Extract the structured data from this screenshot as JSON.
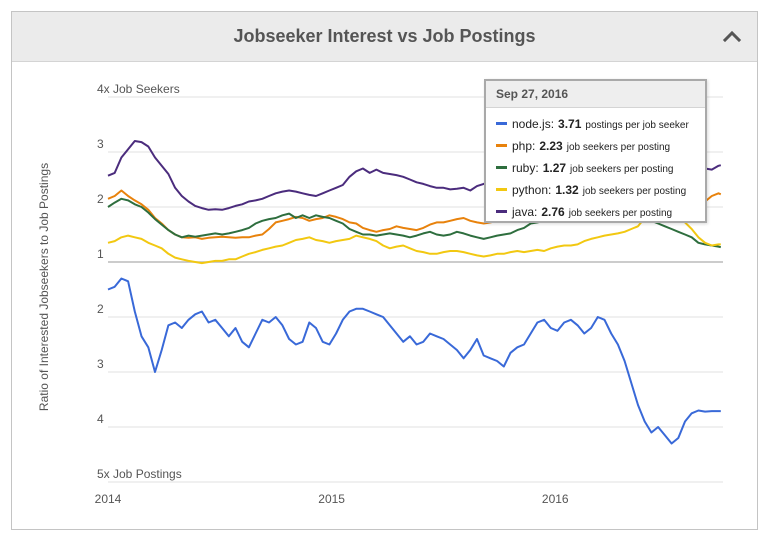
{
  "header": {
    "title": "Jobseeker Interest vs Job Postings"
  },
  "chart_data": {
    "type": "line",
    "title": "Jobseeker Interest vs Job Postings",
    "ylabel": "Ratio of Interested Jobseekers to Job Postings",
    "y_scale": "symmetric ratio: 1 is parity; values above the line favor job seekers, values below favor job postings",
    "y_ticks": [
      {
        "v": 4,
        "label": "4x Job Seekers"
      },
      {
        "v": 3,
        "label": "3"
      },
      {
        "v": 2,
        "label": "2"
      },
      {
        "v": 1,
        "label": "1"
      },
      {
        "v": -2,
        "label": "2"
      },
      {
        "v": -3,
        "label": "3"
      },
      {
        "v": -4,
        "label": "4"
      },
      {
        "v": -5,
        "label": "5x Job Postings"
      }
    ],
    "ylim": [
      -5,
      4
    ],
    "x_ticks": [
      {
        "v": 2014.0,
        "label": "2014"
      },
      {
        "v": 2015.0,
        "label": "2015"
      },
      {
        "v": 2016.0,
        "label": "2016"
      }
    ],
    "xlim": [
      2014.0,
      2016.75
    ],
    "grid": true,
    "series": [
      {
        "name": "java",
        "color": "#4b2c7d",
        "x": [
          2014.0,
          2014.03,
          2014.06,
          2014.09,
          2014.12,
          2014.15,
          2014.18,
          2014.21,
          2014.24,
          2014.27,
          2014.3,
          2014.33,
          2014.36,
          2014.39,
          2014.42,
          2014.45,
          2014.48,
          2014.51,
          2014.54,
          2014.57,
          2014.6,
          2014.63,
          2014.66,
          2014.69,
          2014.72,
          2014.75,
          2014.78,
          2014.81,
          2014.84,
          2014.87,
          2014.9,
          2014.93,
          2014.96,
          2014.99,
          2015.02,
          2015.05,
          2015.08,
          2015.11,
          2015.14,
          2015.17,
          2015.2,
          2015.23,
          2015.26,
          2015.29,
          2015.32,
          2015.35,
          2015.38,
          2015.41,
          2015.44,
          2015.47,
          2015.5,
          2015.53,
          2015.56,
          2015.59,
          2015.62,
          2015.65,
          2015.68,
          2015.71,
          2015.74,
          2015.77,
          2015.8,
          2015.83,
          2015.86,
          2015.89,
          2015.92,
          2015.95,
          2015.98,
          2016.01,
          2016.04,
          2016.07,
          2016.1,
          2016.13,
          2016.16,
          2016.19,
          2016.22,
          2016.25,
          2016.28,
          2016.31,
          2016.34,
          2016.37,
          2016.4,
          2016.43,
          2016.46,
          2016.49,
          2016.52,
          2016.55,
          2016.58,
          2016.61,
          2016.64,
          2016.67,
          2016.7,
          2016.73,
          2016.74
        ],
        "values": [
          2.57,
          2.62,
          2.9,
          3.05,
          3.2,
          3.18,
          3.1,
          2.9,
          2.75,
          2.6,
          2.35,
          2.2,
          2.1,
          2.02,
          1.98,
          1.95,
          1.96,
          1.95,
          1.98,
          2.02,
          2.05,
          2.1,
          2.12,
          2.15,
          2.2,
          2.25,
          2.28,
          2.3,
          2.28,
          2.25,
          2.22,
          2.2,
          2.25,
          2.3,
          2.35,
          2.4,
          2.55,
          2.65,
          2.7,
          2.62,
          2.68,
          2.62,
          2.6,
          2.58,
          2.55,
          2.5,
          2.45,
          2.42,
          2.38,
          2.35,
          2.35,
          2.32,
          2.33,
          2.35,
          2.3,
          2.38,
          2.42,
          2.45,
          2.48,
          2.55,
          2.6,
          2.58,
          2.62,
          2.55,
          2.6,
          2.65,
          2.68,
          2.65,
          2.7,
          2.72,
          2.75,
          2.82,
          2.85,
          2.8,
          2.78,
          2.8,
          2.75,
          2.85,
          2.9,
          2.95,
          3.0,
          2.92,
          2.88,
          2.85,
          2.82,
          2.8,
          2.78,
          2.7,
          2.65,
          2.7,
          2.68,
          2.75,
          2.76
        ]
      },
      {
        "name": "php",
        "color": "#e8820c",
        "x": [
          2014.0,
          2014.03,
          2014.06,
          2014.09,
          2014.12,
          2014.15,
          2014.18,
          2014.21,
          2014.24,
          2014.27,
          2014.3,
          2014.33,
          2014.36,
          2014.39,
          2014.42,
          2014.45,
          2014.48,
          2014.51,
          2014.54,
          2014.57,
          2014.6,
          2014.63,
          2014.66,
          2014.69,
          2014.72,
          2014.75,
          2014.78,
          2014.81,
          2014.84,
          2014.87,
          2014.9,
          2014.93,
          2014.96,
          2014.99,
          2015.02,
          2015.05,
          2015.08,
          2015.11,
          2015.14,
          2015.17,
          2015.2,
          2015.23,
          2015.26,
          2015.29,
          2015.32,
          2015.35,
          2015.38,
          2015.41,
          2015.44,
          2015.47,
          2015.5,
          2015.53,
          2015.56,
          2015.59,
          2015.62,
          2015.65,
          2015.68,
          2015.71,
          2015.74,
          2015.77,
          2015.8,
          2015.83,
          2015.86,
          2015.89,
          2015.92,
          2015.95,
          2015.98,
          2016.01,
          2016.04,
          2016.07,
          2016.1,
          2016.13,
          2016.16,
          2016.19,
          2016.22,
          2016.25,
          2016.28,
          2016.31,
          2016.34,
          2016.37,
          2016.4,
          2016.43,
          2016.46,
          2016.49,
          2016.52,
          2016.55,
          2016.58,
          2016.61,
          2016.64,
          2016.67,
          2016.7,
          2016.73,
          2016.74
        ],
        "values": [
          2.15,
          2.2,
          2.3,
          2.2,
          2.12,
          2.05,
          1.95,
          1.8,
          1.7,
          1.58,
          1.5,
          1.45,
          1.44,
          1.45,
          1.42,
          1.44,
          1.45,
          1.46,
          1.45,
          1.44,
          1.45,
          1.45,
          1.48,
          1.5,
          1.6,
          1.72,
          1.75,
          1.78,
          1.82,
          1.8,
          1.75,
          1.78,
          1.8,
          1.85,
          1.82,
          1.78,
          1.72,
          1.7,
          1.62,
          1.58,
          1.55,
          1.58,
          1.6,
          1.65,
          1.62,
          1.6,
          1.58,
          1.62,
          1.68,
          1.72,
          1.72,
          1.75,
          1.78,
          1.8,
          1.75,
          1.72,
          1.7,
          1.72,
          1.75,
          1.78,
          1.8,
          1.82,
          1.8,
          1.85,
          1.88,
          1.9,
          1.92,
          1.95,
          1.98,
          2.0,
          2.05,
          2.1,
          2.15,
          2.2,
          2.25,
          2.3,
          2.35,
          2.3,
          2.25,
          2.22,
          2.2,
          2.18,
          2.15,
          2.1,
          2.05,
          2.0,
          1.98,
          2.0,
          2.05,
          2.1,
          2.2,
          2.25,
          2.23
        ]
      },
      {
        "name": "ruby",
        "color": "#2e6e3e",
        "x": [
          2014.0,
          2014.03,
          2014.06,
          2014.09,
          2014.12,
          2014.15,
          2014.18,
          2014.21,
          2014.24,
          2014.27,
          2014.3,
          2014.33,
          2014.36,
          2014.39,
          2014.42,
          2014.45,
          2014.48,
          2014.51,
          2014.54,
          2014.57,
          2014.6,
          2014.63,
          2014.66,
          2014.69,
          2014.72,
          2014.75,
          2014.78,
          2014.81,
          2014.84,
          2014.87,
          2014.9,
          2014.93,
          2014.96,
          2014.99,
          2015.02,
          2015.05,
          2015.08,
          2015.11,
          2015.14,
          2015.17,
          2015.2,
          2015.23,
          2015.26,
          2015.29,
          2015.32,
          2015.35,
          2015.38,
          2015.41,
          2015.44,
          2015.47,
          2015.5,
          2015.53,
          2015.56,
          2015.59,
          2015.62,
          2015.65,
          2015.68,
          2015.71,
          2015.74,
          2015.77,
          2015.8,
          2015.83,
          2015.86,
          2015.89,
          2015.92,
          2015.95,
          2015.98,
          2016.01,
          2016.04,
          2016.07,
          2016.1,
          2016.13,
          2016.16,
          2016.19,
          2016.22,
          2016.25,
          2016.28,
          2016.31,
          2016.34,
          2016.37,
          2016.4,
          2016.43,
          2016.46,
          2016.49,
          2016.52,
          2016.55,
          2016.58,
          2016.61,
          2016.64,
          2016.67,
          2016.7,
          2016.73,
          2016.74
        ],
        "values": [
          2.0,
          2.08,
          2.15,
          2.12,
          2.05,
          2.0,
          1.9,
          1.78,
          1.68,
          1.58,
          1.5,
          1.45,
          1.48,
          1.46,
          1.48,
          1.5,
          1.52,
          1.5,
          1.52,
          1.55,
          1.58,
          1.62,
          1.7,
          1.75,
          1.78,
          1.8,
          1.85,
          1.88,
          1.8,
          1.85,
          1.8,
          1.85,
          1.82,
          1.8,
          1.75,
          1.7,
          1.6,
          1.55,
          1.5,
          1.5,
          1.48,
          1.5,
          1.52,
          1.5,
          1.48,
          1.45,
          1.48,
          1.52,
          1.55,
          1.5,
          1.48,
          1.5,
          1.55,
          1.52,
          1.48,
          1.45,
          1.42,
          1.45,
          1.48,
          1.5,
          1.52,
          1.58,
          1.62,
          1.7,
          1.72,
          1.75,
          1.78,
          1.8,
          1.85,
          1.82,
          1.85,
          1.9,
          1.95,
          2.0,
          2.05,
          2.1,
          2.05,
          2.0,
          1.9,
          1.85,
          1.8,
          1.75,
          1.7,
          1.65,
          1.6,
          1.55,
          1.5,
          1.45,
          1.35,
          1.32,
          1.3,
          1.28,
          1.27
        ]
      },
      {
        "name": "python",
        "color": "#f2c811",
        "x": [
          2014.0,
          2014.03,
          2014.06,
          2014.09,
          2014.12,
          2014.15,
          2014.18,
          2014.21,
          2014.24,
          2014.27,
          2014.3,
          2014.33,
          2014.36,
          2014.39,
          2014.42,
          2014.45,
          2014.48,
          2014.51,
          2014.54,
          2014.57,
          2014.6,
          2014.63,
          2014.66,
          2014.69,
          2014.72,
          2014.75,
          2014.78,
          2014.81,
          2014.84,
          2014.87,
          2014.9,
          2014.93,
          2014.96,
          2014.99,
          2015.02,
          2015.05,
          2015.08,
          2015.11,
          2015.14,
          2015.17,
          2015.2,
          2015.23,
          2015.26,
          2015.29,
          2015.32,
          2015.35,
          2015.38,
          2015.41,
          2015.44,
          2015.47,
          2015.5,
          2015.53,
          2015.56,
          2015.59,
          2015.62,
          2015.65,
          2015.68,
          2015.71,
          2015.74,
          2015.77,
          2015.8,
          2015.83,
          2015.86,
          2015.89,
          2015.92,
          2015.95,
          2015.98,
          2016.01,
          2016.04,
          2016.07,
          2016.1,
          2016.13,
          2016.16,
          2016.19,
          2016.22,
          2016.25,
          2016.28,
          2016.31,
          2016.34,
          2016.37,
          2016.4,
          2016.43,
          2016.46,
          2016.49,
          2016.52,
          2016.55,
          2016.58,
          2016.61,
          2016.64,
          2016.67,
          2016.7,
          2016.73,
          2016.74
        ],
        "values": [
          1.35,
          1.38,
          1.45,
          1.48,
          1.45,
          1.42,
          1.35,
          1.3,
          1.25,
          1.15,
          1.08,
          1.05,
          1.02,
          1.0,
          0.98,
          1.0,
          1.02,
          1.02,
          1.05,
          1.05,
          1.1,
          1.15,
          1.18,
          1.22,
          1.25,
          1.28,
          1.3,
          1.35,
          1.4,
          1.42,
          1.45,
          1.4,
          1.38,
          1.35,
          1.38,
          1.4,
          1.42,
          1.48,
          1.45,
          1.42,
          1.38,
          1.3,
          1.25,
          1.28,
          1.3,
          1.25,
          1.2,
          1.18,
          1.15,
          1.15,
          1.18,
          1.2,
          1.2,
          1.18,
          1.15,
          1.12,
          1.1,
          1.12,
          1.15,
          1.15,
          1.18,
          1.2,
          1.18,
          1.2,
          1.22,
          1.2,
          1.25,
          1.28,
          1.3,
          1.3,
          1.32,
          1.38,
          1.42,
          1.45,
          1.48,
          1.5,
          1.52,
          1.55,
          1.6,
          1.65,
          1.8,
          2.0,
          2.1,
          2.05,
          1.95,
          1.85,
          1.72,
          1.6,
          1.45,
          1.35,
          1.3,
          1.32,
          1.32
        ]
      },
      {
        "name": "node.js",
        "color": "#3969d8",
        "x": [
          2014.0,
          2014.03,
          2014.06,
          2014.09,
          2014.12,
          2014.15,
          2014.18,
          2014.21,
          2014.24,
          2014.27,
          2014.3,
          2014.33,
          2014.36,
          2014.39,
          2014.42,
          2014.45,
          2014.48,
          2014.51,
          2014.54,
          2014.57,
          2014.6,
          2014.63,
          2014.66,
          2014.69,
          2014.72,
          2014.75,
          2014.78,
          2014.81,
          2014.84,
          2014.87,
          2014.9,
          2014.93,
          2014.96,
          2014.99,
          2015.02,
          2015.05,
          2015.08,
          2015.11,
          2015.14,
          2015.17,
          2015.2,
          2015.23,
          2015.26,
          2015.29,
          2015.32,
          2015.35,
          2015.38,
          2015.41,
          2015.44,
          2015.47,
          2015.5,
          2015.53,
          2015.56,
          2015.59,
          2015.62,
          2015.65,
          2015.68,
          2015.71,
          2015.74,
          2015.77,
          2015.8,
          2015.83,
          2015.86,
          2015.89,
          2015.92,
          2015.95,
          2015.98,
          2016.01,
          2016.04,
          2016.07,
          2016.1,
          2016.13,
          2016.16,
          2016.19,
          2016.22,
          2016.25,
          2016.28,
          2016.31,
          2016.34,
          2016.37,
          2016.4,
          2016.43,
          2016.46,
          2016.49,
          2016.52,
          2016.55,
          2016.58,
          2016.61,
          2016.64,
          2016.67,
          2016.7,
          2016.73,
          2016.74
        ],
        "values": [
          -1.5,
          -1.45,
          -1.3,
          -1.35,
          -1.9,
          -2.35,
          -2.55,
          -3.0,
          -2.6,
          -2.15,
          -2.1,
          -2.2,
          -2.05,
          -1.95,
          -1.9,
          -2.1,
          -2.05,
          -2.2,
          -2.35,
          -2.2,
          -2.45,
          -2.55,
          -2.3,
          -2.05,
          -2.1,
          -2.0,
          -2.15,
          -2.4,
          -2.5,
          -2.45,
          -2.1,
          -2.2,
          -2.45,
          -2.5,
          -2.3,
          -2.05,
          -1.9,
          -1.85,
          -1.85,
          -1.9,
          -1.95,
          -2.0,
          -2.15,
          -2.3,
          -2.45,
          -2.35,
          -2.5,
          -2.45,
          -2.3,
          -2.35,
          -2.4,
          -2.5,
          -2.6,
          -2.75,
          -2.6,
          -2.4,
          -2.7,
          -2.75,
          -2.8,
          -2.9,
          -2.65,
          -2.55,
          -2.5,
          -2.3,
          -2.1,
          -2.05,
          -2.2,
          -2.25,
          -2.1,
          -2.05,
          -2.15,
          -2.3,
          -2.2,
          -2.0,
          -2.05,
          -2.3,
          -2.5,
          -2.8,
          -3.2,
          -3.6,
          -3.9,
          -4.1,
          -4.0,
          -4.15,
          -4.3,
          -4.2,
          -3.9,
          -3.75,
          -3.7,
          -3.72,
          -3.71,
          -3.71,
          -3.71
        ]
      }
    ]
  },
  "tooltip": {
    "date": "Sep 27, 2016",
    "rows": [
      {
        "name": "node.js",
        "color": "#3969d8",
        "value": "3.71",
        "desc": "postings per job seeker"
      },
      {
        "name": "php",
        "color": "#e8820c",
        "value": "2.23",
        "desc": "job seekers per posting"
      },
      {
        "name": "ruby",
        "color": "#2e6e3e",
        "value": "1.27",
        "desc": "job seekers per posting"
      },
      {
        "name": "python",
        "color": "#f2c811",
        "value": "1.32",
        "desc": "job seekers per posting"
      },
      {
        "name": "java",
        "color": "#4b2c7d",
        "value": "2.76",
        "desc": "job seekers per posting"
      }
    ]
  }
}
